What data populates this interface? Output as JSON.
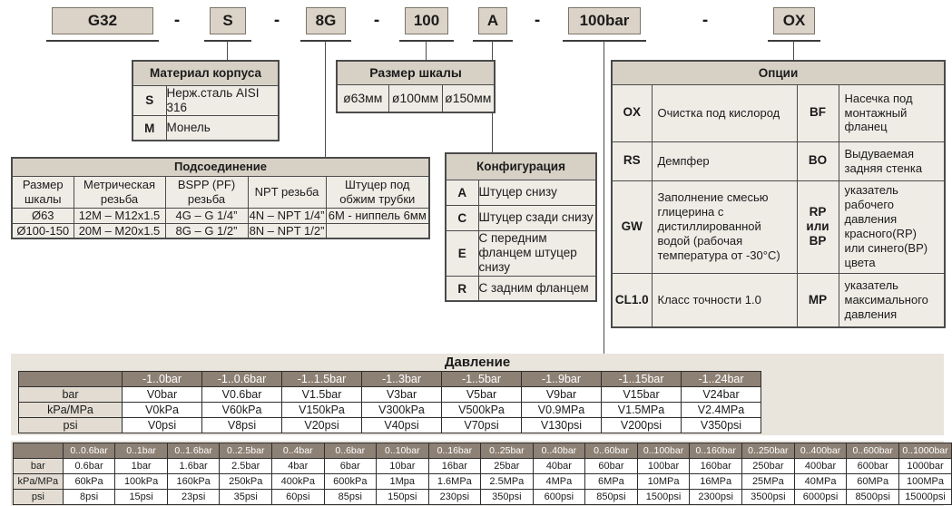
{
  "code_row": {
    "boxes": [
      "G32",
      "S",
      "8G",
      "100",
      "A",
      "100bar",
      "OX"
    ],
    "dash": "-"
  },
  "material_table": {
    "title": "Материал корпуса",
    "rows": [
      {
        "code": "S",
        "desc": "Нерж.сталь AISI 316"
      },
      {
        "code": "M",
        "desc": "Монель"
      }
    ]
  },
  "dial_size_table": {
    "title": "Размер шкалы",
    "options": [
      "ø63мм",
      "ø100мм",
      "ø150мм"
    ]
  },
  "connection_table": {
    "title": "Подсоединение",
    "columns": [
      "Размер шкалы",
      "Метрическая резьба",
      "BSPP (PF) резьба",
      "NPT резьба",
      "Штуцер под обжим трубки"
    ],
    "rows": [
      [
        "Ø63",
        "12M – M12x1.5",
        "4G – G 1/4”",
        "4N – NPT 1/4”",
        "6M - ниппель 6мм"
      ],
      [
        "Ø100-150",
        "20M – M20x1.5",
        "8G – G 1/2”",
        "8N – NPT 1/2”",
        ""
      ]
    ]
  },
  "configuration_table": {
    "title": "Конфигурация",
    "rows": [
      {
        "code": "A",
        "desc": "Штуцер снизу"
      },
      {
        "code": "C",
        "desc": "Штуцер сзади снизу"
      },
      {
        "code": "E",
        "desc": "С передним фланцем штуцер снизу"
      },
      {
        "code": "R",
        "desc": "С задним фланцем"
      }
    ]
  },
  "options_table": {
    "title": "Опции",
    "rows": [
      {
        "code1": "OX",
        "desc1": "Очистка под кислород",
        "code2": "BF",
        "desc2": "Насечка под монтажный фланец"
      },
      {
        "code1": "RS",
        "desc1": "Демпфер",
        "code2": "BO",
        "desc2": "Выдуваемая задняя стенка"
      },
      {
        "code1": "GW",
        "desc1": "Заполнение смесью глицерина с дистиллированной водой (рабочая температура от -30°C)",
        "code2": "RP или BP",
        "desc2": "указатель рабочего давления красного(RP) или синего(BP) цвета"
      },
      {
        "code1": "CL1.0",
        "desc1": "Класс точности 1.0",
        "code2": "MP",
        "desc2": "указатель максимального давления"
      }
    ]
  },
  "pressure": {
    "title": "Давление",
    "vacuum_table": {
      "ranges": [
        "-1..0bar",
        "-1..0.6bar",
        "-1..1.5bar",
        "-1..3bar",
        "-1..5bar",
        "-1..9bar",
        "-1..15bar",
        "-1..24bar"
      ],
      "rows": [
        {
          "label": "bar",
          "values": [
            "V0bar",
            "V0.6bar",
            "V1.5bar",
            "V3bar",
            "V5bar",
            "V9bar",
            "V15bar",
            "V24bar"
          ]
        },
        {
          "label": "kPa/MPa",
          "values": [
            "V0kPa",
            "V60kPa",
            "V150kPa",
            "V300kPa",
            "V500kPa",
            "V0.9MPa",
            "V1.5MPa",
            "V2.4MPa"
          ]
        },
        {
          "label": "psi",
          "values": [
            "V0psi",
            "V8psi",
            "V20psi",
            "V40psi",
            "V70psi",
            "V130psi",
            "V200psi",
            "V350psi"
          ]
        }
      ]
    },
    "gauge_table": {
      "ranges": [
        "0..0.6bar",
        "0..1bar",
        "0..1.6bar",
        "0..2.5bar",
        "0..4bar",
        "0..6bar",
        "0..10bar",
        "0..16bar",
        "0..25bar",
        "0..40bar",
        "0..60bar",
        "0..100bar",
        "0..160bar",
        "0..250bar",
        "0..400bar",
        "0..600bar",
        "0..1000bar"
      ],
      "rows": [
        {
          "label": "bar",
          "values": [
            "0.6bar",
            "1bar",
            "1.6bar",
            "2.5bar",
            "4bar",
            "6bar",
            "10bar",
            "16bar",
            "25bar",
            "40bar",
            "60bar",
            "100bar",
            "160bar",
            "250bar",
            "400bar",
            "600bar",
            "1000bar"
          ]
        },
        {
          "label": "kPa/MPa",
          "values": [
            "60kPa",
            "100kPa",
            "160kPa",
            "250kPa",
            "400kPa",
            "600kPa",
            "1Mpa",
            "1.6MPa",
            "2.5MPa",
            "4MPa",
            "6MPa",
            "10MPa",
            "16MPa",
            "25MPa",
            "40MPa",
            "60MPa",
            "100MPa"
          ]
        },
        {
          "label": "psi",
          "values": [
            "8psi",
            "15psi",
            "23psi",
            "35psi",
            "60psi",
            "85psi",
            "150psi",
            "230psi",
            "350psi",
            "600psi",
            "850psi",
            "1500psi",
            "2300psi",
            "3500psi",
            "6000psi",
            "8500psi",
            "15000psi"
          ]
        }
      ]
    }
  },
  "colors": {
    "box_fill": "#dbd3c7",
    "header_fill": "#d7d0c5",
    "cell_fill": "#efece6",
    "panel_fill": "#e9e5dd",
    "pressure_header": "#8d8074",
    "pressure_label": "#e2dcd2",
    "border": "#4b4b4b"
  }
}
